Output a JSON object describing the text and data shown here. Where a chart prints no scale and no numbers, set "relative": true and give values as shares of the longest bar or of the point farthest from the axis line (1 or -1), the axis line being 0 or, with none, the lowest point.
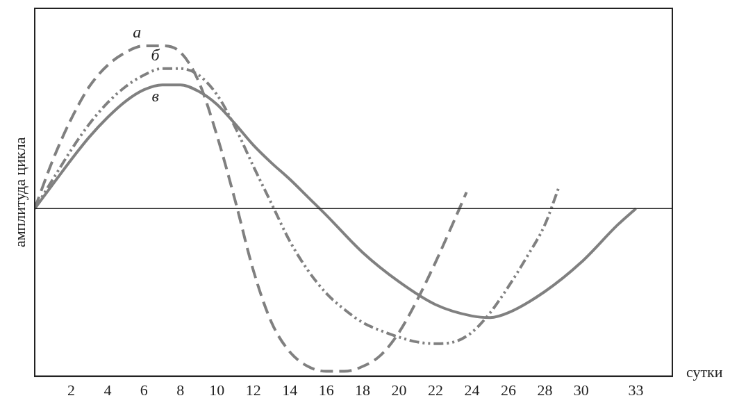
{
  "chart_data": {
    "type": "line",
    "xlabel": "сутки",
    "ylabel": "амплитуда цикла",
    "relative": true,
    "xlim": [
      0,
      35
    ],
    "xticks": [
      2,
      4,
      6,
      8,
      10,
      12,
      14,
      16,
      18,
      20,
      22,
      24,
      26,
      28,
      30,
      33
    ],
    "tick_labels": "x",
    "grid": false,
    "marker": "none",
    "series": [
      {
        "name": "а",
        "color": "#808080",
        "line_style": "dashed",
        "x": [
          0,
          1,
          2,
          3,
          4,
          5,
          6,
          7,
          8,
          9,
          10,
          11,
          12,
          13,
          14,
          15,
          16,
          17,
          18,
          19,
          20,
          21,
          22,
          23,
          23.7
        ],
        "values": [
          0,
          0.3,
          0.55,
          0.75,
          0.88,
          0.96,
          1.0,
          1.0,
          0.96,
          0.78,
          0.45,
          0.05,
          -0.38,
          -0.7,
          -0.88,
          -0.97,
          -1.0,
          -1.0,
          -0.97,
          -0.9,
          -0.76,
          -0.56,
          -0.33,
          -0.08,
          0.1
        ]
      },
      {
        "name": "б",
        "color": "#808080",
        "line_style": "dotted",
        "x": [
          0,
          1,
          2,
          3,
          4,
          5,
          6,
          7,
          8,
          9,
          10,
          11,
          12,
          13,
          14,
          15,
          16,
          17,
          18,
          19,
          20,
          21,
          22,
          23,
          24,
          25,
          26,
          27,
          28,
          28.8
        ],
        "values": [
          0,
          0.18,
          0.36,
          0.52,
          0.65,
          0.75,
          0.82,
          0.86,
          0.86,
          0.82,
          0.7,
          0.5,
          0.26,
          0.03,
          -0.2,
          -0.38,
          -0.52,
          -0.62,
          -0.7,
          -0.75,
          -0.79,
          -0.82,
          -0.83,
          -0.82,
          -0.76,
          -0.64,
          -0.48,
          -0.3,
          -0.1,
          0.14
        ]
      },
      {
        "name": "в",
        "color": "#808080",
        "line_style": "solid",
        "x": [
          0,
          1,
          2,
          3,
          4,
          5,
          6,
          7,
          8,
          9,
          10,
          11,
          12,
          13,
          14,
          15,
          16,
          18,
          20,
          22,
          24,
          25,
          26,
          28,
          30,
          32,
          33
        ],
        "values": [
          0,
          0.15,
          0.3,
          0.44,
          0.56,
          0.66,
          0.73,
          0.76,
          0.76,
          0.72,
          0.64,
          0.52,
          0.39,
          0.28,
          0.18,
          0.07,
          -0.04,
          -0.27,
          -0.45,
          -0.59,
          -0.66,
          -0.67,
          -0.64,
          -0.51,
          -0.33,
          -0.1,
          0
        ]
      }
    ]
  }
}
